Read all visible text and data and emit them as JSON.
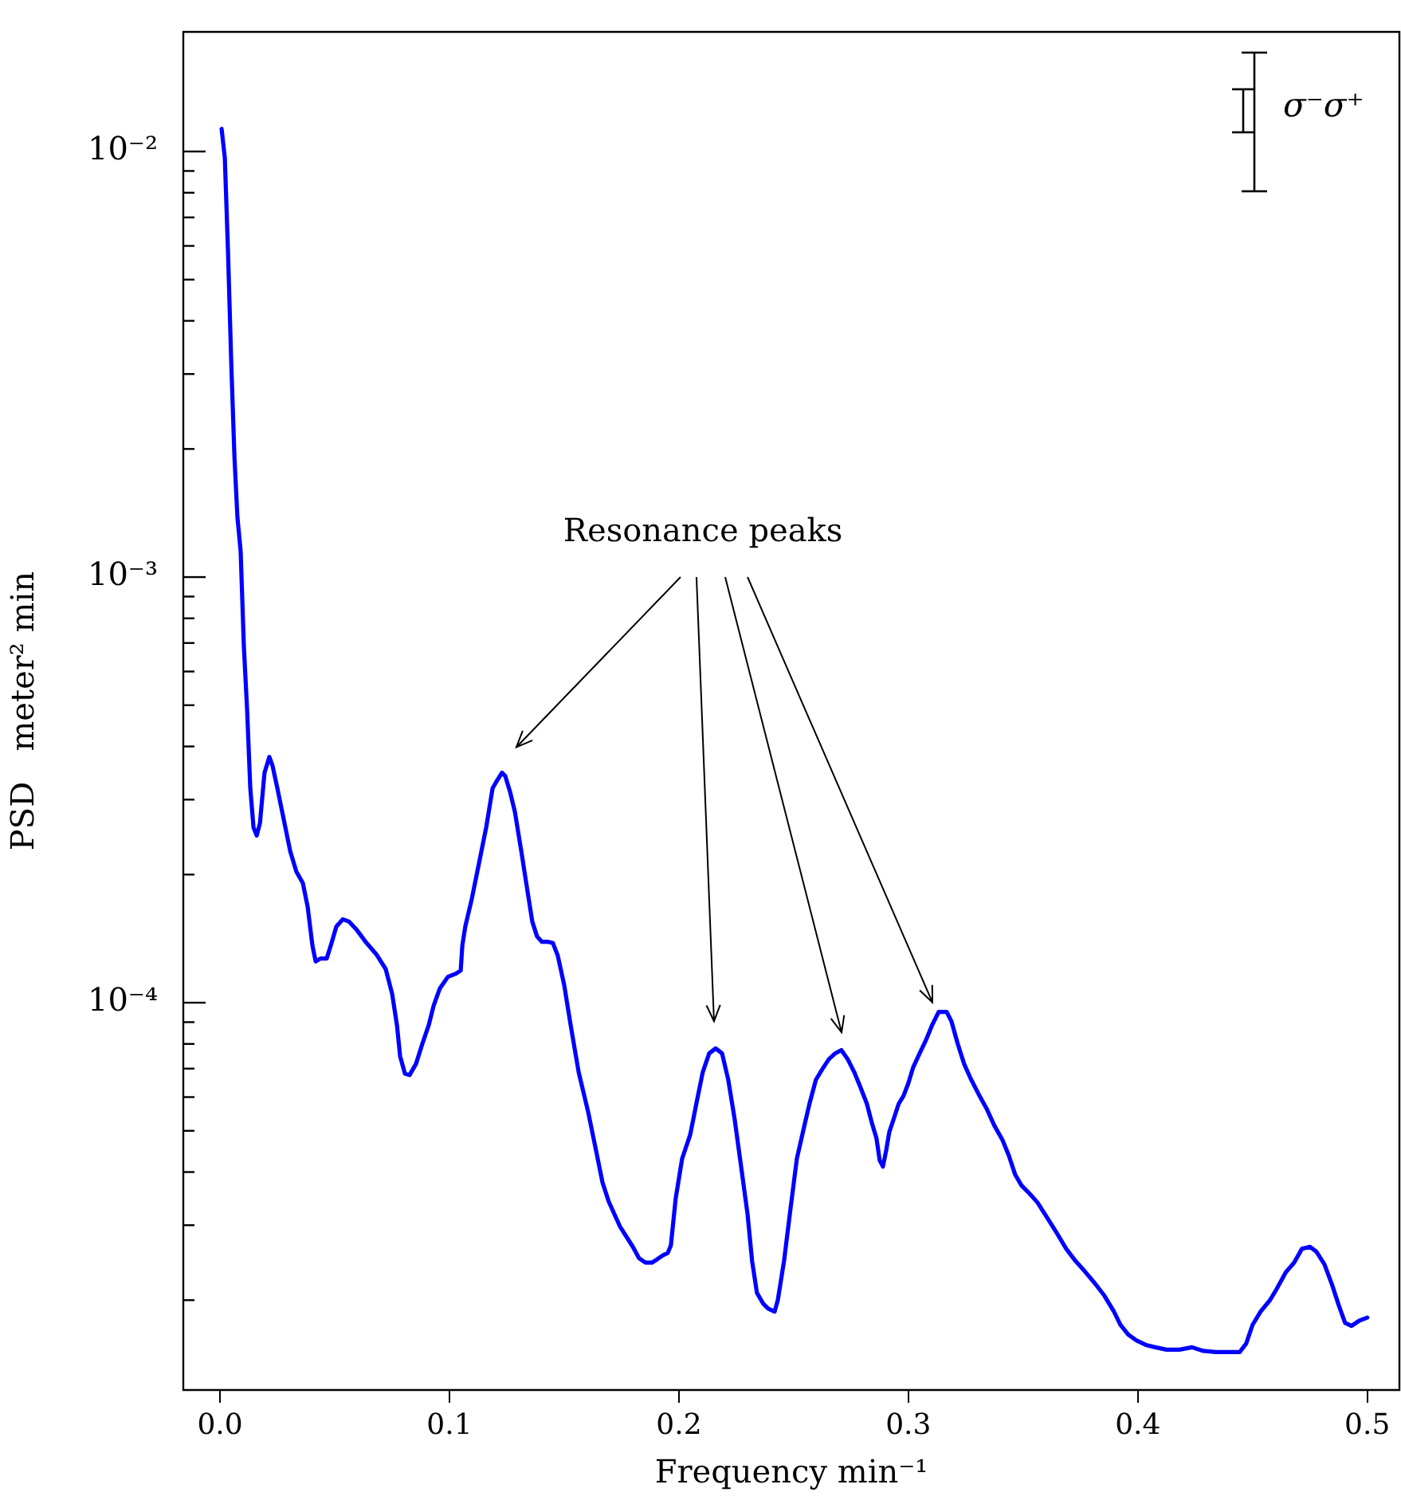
{
  "chart_data": {
    "type": "line",
    "xlabel": "Frequency min⁻¹",
    "ylabel": "PSD   meter² min",
    "log": true,
    "xlim": [
      -0.016,
      0.514
    ],
    "xticks": [
      {
        "value": 0,
        "label": "0.0"
      },
      0.1,
      0.2,
      0.3,
      0.4,
      0.5
    ],
    "ylim": [
      1.23e-05,
      0.0191
    ],
    "yticks": [
      {
        "value": 2e-05,
        "label": null
      },
      {
        "value": 3e-05,
        "label": null
      },
      {
        "value": 4e-05,
        "label": null
      },
      {
        "value": 5e-05,
        "label": null
      },
      {
        "value": 6e-05,
        "label": null
      },
      {
        "value": 7e-05,
        "label": null
      },
      {
        "value": 8e-05,
        "label": null
      },
      {
        "value": 9e-05,
        "label": null
      },
      {
        "value": 0.0001,
        "label": "10⁻⁴"
      },
      {
        "value": 0.0002,
        "label": null
      },
      {
        "value": 0.0003,
        "label": null
      },
      {
        "value": 0.0004,
        "label": null
      },
      {
        "value": 0.0005,
        "label": null
      },
      {
        "value": 0.0006,
        "label": null
      },
      {
        "value": 0.0007,
        "label": null
      },
      {
        "value": 0.0008,
        "label": null
      },
      {
        "value": 0.0009,
        "label": null
      },
      {
        "value": 0.001,
        "label": "10⁻³"
      },
      {
        "value": 0.002,
        "label": null
      },
      {
        "value": 0.003,
        "label": null
      },
      {
        "value": 0.004,
        "label": null
      },
      {
        "value": 0.005,
        "label": null
      },
      {
        "value": 0.006,
        "label": null
      },
      {
        "value": 0.007,
        "label": null
      },
      {
        "value": 0.008,
        "label": null
      },
      {
        "value": 0.009,
        "label": null
      },
      {
        "value": 0.01,
        "label": "10⁻²"
      }
    ],
    "annotations": [
      "Resonance peaks",
      "σ⁻σ⁺"
    ],
    "x": [
      0.0007,
      0.0021,
      0.0035,
      0.0049,
      0.0063,
      0.0076,
      0.009,
      0.0104,
      0.0118,
      0.0132,
      0.0146,
      0.016,
      0.0174,
      0.0194,
      0.0215,
      0.0229,
      0.025,
      0.0278,
      0.0306,
      0.0333,
      0.0361,
      0.0382,
      0.0403,
      0.0417,
      0.0438,
      0.0465,
      0.0486,
      0.0507,
      0.0535,
      0.0563,
      0.0597,
      0.0639,
      0.0681,
      0.0722,
      0.075,
      0.0771,
      0.0785,
      0.0806,
      0.0826,
      0.0854,
      0.0882,
      0.091,
      0.0931,
      0.0958,
      0.0993,
      0.1028,
      0.1049,
      0.1056,
      0.1069,
      0.1097,
      0.1132,
      0.116,
      0.1188,
      0.1208,
      0.1229,
      0.1243,
      0.1264,
      0.1285,
      0.1313,
      0.134,
      0.1361,
      0.1382,
      0.1403,
      0.1431,
      0.1451,
      0.1472,
      0.15,
      0.1528,
      0.1563,
      0.1604,
      0.1639,
      0.1667,
      0.1694,
      0.1743,
      0.1799,
      0.1826,
      0.1854,
      0.1882,
      0.1903,
      0.1931,
      0.1951,
      0.1965,
      0.1986,
      0.2014,
      0.2049,
      0.2076,
      0.2104,
      0.2132,
      0.216,
      0.2188,
      0.2215,
      0.2243,
      0.2271,
      0.2299,
      0.2319,
      0.234,
      0.2368,
      0.2389,
      0.2417,
      0.2431,
      0.2458,
      0.2486,
      0.2514,
      0.2542,
      0.2569,
      0.2597,
      0.2625,
      0.2653,
      0.2681,
      0.2708,
      0.2736,
      0.2764,
      0.2792,
      0.2819,
      0.284,
      0.2861,
      0.2875,
      0.2889,
      0.2903,
      0.2917,
      0.2938,
      0.2958,
      0.2979,
      0.3,
      0.3021,
      0.3049,
      0.3076,
      0.3104,
      0.3132,
      0.3167,
      0.3188,
      0.3215,
      0.3243,
      0.3271,
      0.3306,
      0.334,
      0.3375,
      0.341,
      0.3438,
      0.3465,
      0.3493,
      0.3528,
      0.3563,
      0.3604,
      0.3646,
      0.3688,
      0.3729,
      0.3771,
      0.3813,
      0.3854,
      0.3896,
      0.3924,
      0.3958,
      0.3993,
      0.4035,
      0.4076,
      0.4125,
      0.4181,
      0.4236,
      0.4285,
      0.434,
      0.4389,
      0.4444,
      0.4472,
      0.45,
      0.4535,
      0.4576,
      0.4604,
      0.4646,
      0.4681,
      0.4715,
      0.475,
      0.4778,
      0.4813,
      0.4847,
      0.4875,
      0.4903,
      0.4931,
      0.4965,
      0.5
    ],
    "series": [
      {
        "color": "#0000ff",
        "values": [
          0.0113,
          0.00966,
          0.00579,
          0.00319,
          0.00191,
          0.00138,
          0.00115,
          0.000687,
          0.000489,
          0.000319,
          0.000258,
          0.000247,
          0.000264,
          0.000347,
          0.000378,
          0.00036,
          0.000319,
          0.000269,
          0.000227,
          0.000203,
          0.000191,
          0.000168,
          0.000136,
          0.000125,
          0.000127,
          0.000127,
          0.000138,
          0.000151,
          0.000157,
          0.000155,
          0.000148,
          0.000138,
          0.00013,
          0.00012,
          0.000105,
          8.87e-05,
          7.48e-05,
          6.81e-05,
          6.76e-05,
          7.18e-05,
          8.01e-05,
          8.87e-05,
          9.84e-05,
          0.000108,
          0.000115,
          0.000117,
          0.000119,
          0.000136,
          0.000151,
          0.000175,
          0.000217,
          0.000258,
          0.000319,
          0.000333,
          0.000347,
          0.000341,
          0.000313,
          0.000281,
          0.000227,
          0.000183,
          0.000155,
          0.000143,
          0.000139,
          0.000139,
          0.000138,
          0.000129,
          0.00011,
          8.87e-05,
          6.87e-05,
          5.55e-05,
          4.49e-05,
          3.78e-05,
          3.41e-05,
          2.98e-05,
          2.67e-05,
          2.51e-05,
          2.45e-05,
          2.45e-05,
          2.49e-05,
          2.55e-05,
          2.58e-05,
          2.69e-05,
          3.47e-05,
          4.3e-05,
          4.89e-05,
          5.79e-05,
          6.87e-05,
          7.6e-05,
          7.81e-05,
          7.6e-05,
          6.59e-05,
          5.32e-05,
          4.12e-05,
          3.19e-05,
          2.47e-05,
          2.08e-05,
          1.96e-05,
          1.91e-05,
          1.88e-05,
          2e-05,
          2.47e-05,
          3.27e-05,
          4.3e-05,
          5.01e-05,
          5.79e-05,
          6.59e-05,
          6.98e-05,
          7.36e-05,
          7.6e-05,
          7.74e-05,
          7.36e-05,
          6.87e-05,
          6.31e-05,
          5.79e-05,
          5.24e-05,
          4.8e-05,
          4.26e-05,
          4.12e-05,
          4.49e-05,
          4.97e-05,
          5.37e-05,
          5.79e-05,
          6.04e-05,
          6.47e-05,
          7.05e-05,
          7.6e-05,
          8.15e-05,
          8.87e-05,
          9.51e-05,
          9.51e-05,
          9.03e-05,
          8.01e-05,
          7.18e-05,
          6.64e-05,
          6.1e-05,
          5.65e-05,
          5.14e-05,
          4.76e-05,
          4.37e-05,
          3.95e-05,
          3.72e-05,
          3.56e-05,
          3.39e-05,
          3.13e-05,
          2.88e-05,
          2.64e-05,
          2.47e-05,
          2.33e-05,
          2.19e-05,
          2.05e-05,
          1.88e-05,
          1.75e-05,
          1.66e-05,
          1.61e-05,
          1.57e-05,
          1.55e-05,
          1.53e-05,
          1.53e-05,
          1.55e-05,
          1.52e-05,
          1.51e-05,
          1.51e-05,
          1.51e-05,
          1.58e-05,
          1.75e-05,
          1.88e-05,
          2e-05,
          2.12e-05,
          2.33e-05,
          2.45e-05,
          2.64e-05,
          2.67e-05,
          2.6e-05,
          2.43e-05,
          2.17e-05,
          1.95e-05,
          1.77e-05,
          1.74e-05,
          1.79e-05,
          1.82e-05
        ]
      }
    ]
  }
}
